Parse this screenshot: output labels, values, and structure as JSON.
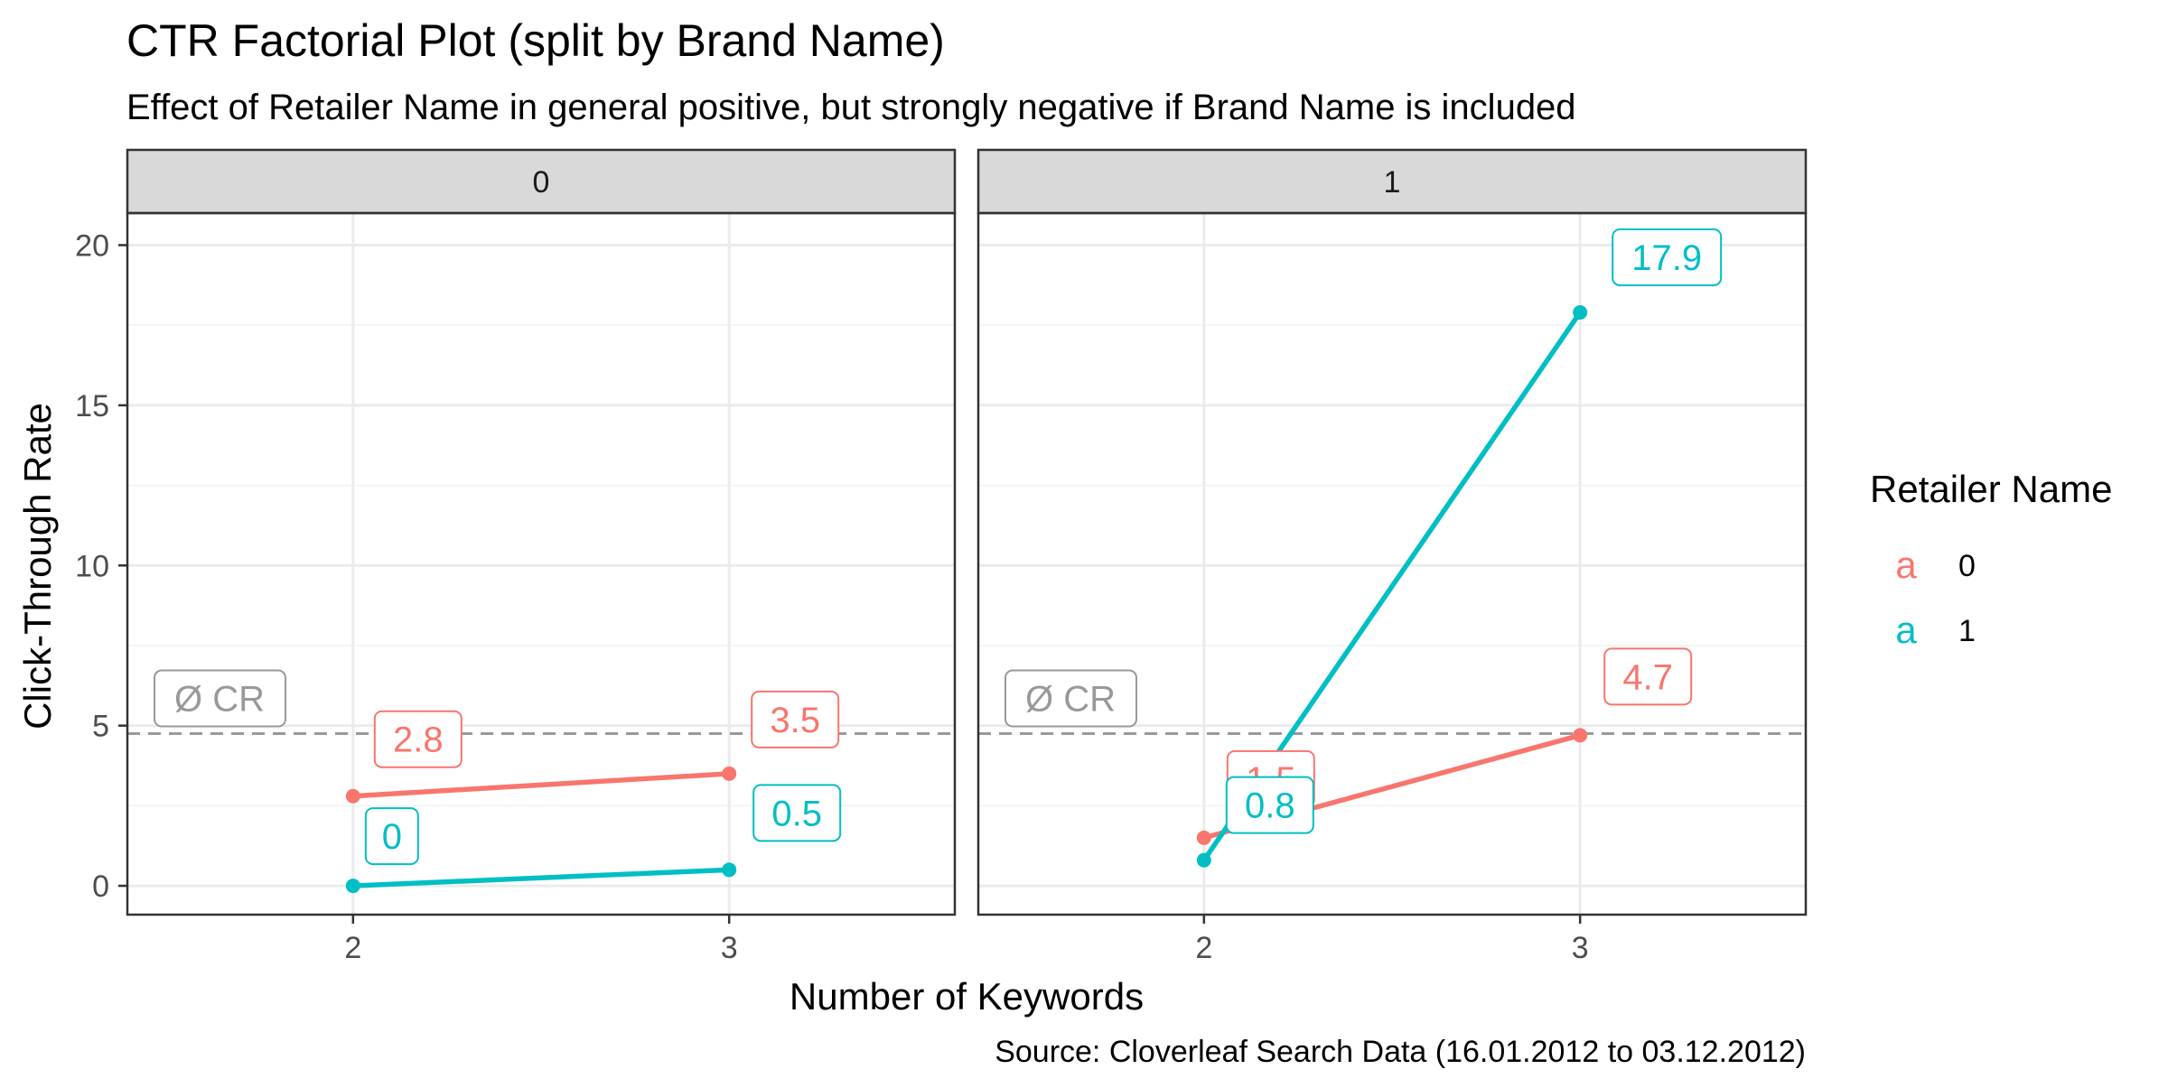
{
  "chart_data": {
    "type": "line",
    "title": "CTR Factorial Plot (split by Brand Name)",
    "subtitle": "Effect of Retailer Name in general positive, but strongly negative if Brand Name is included",
    "xlabel": "Number of Keywords",
    "ylabel": "Click-Through Rate",
    "caption": "Source: Cloverleaf Search Data (16.01.2012 to 03.12.2012)",
    "x": [
      2,
      3
    ],
    "x_ticks": [
      "2",
      "3"
    ],
    "y_ticks": [
      0,
      5,
      10,
      15,
      20
    ],
    "ylim": [
      -0.9,
      21
    ],
    "grid": true,
    "legend": {
      "title": "Retailer Name",
      "position": "right",
      "entries": [
        {
          "label": "0",
          "color": "#F8766D"
        },
        {
          "label": "1",
          "color": "#00BFC4"
        }
      ]
    },
    "reference_line": {
      "value": 4.75,
      "label": "Ø CR",
      "color": "#999999"
    },
    "facets": [
      {
        "label": "0",
        "series": [
          {
            "name": "0",
            "color": "#F8766D",
            "values": [
              2.8,
              3.5
            ],
            "labels": [
              "2.8",
              "3.5"
            ]
          },
          {
            "name": "1",
            "color": "#00BFC4",
            "values": [
              0.0,
              0.5
            ],
            "labels": [
              "0",
              "0.5"
            ]
          }
        ]
      },
      {
        "label": "1",
        "series": [
          {
            "name": "0",
            "color": "#F8766D",
            "values": [
              1.5,
              4.7
            ],
            "labels": [
              "1.5",
              "4.7"
            ]
          },
          {
            "name": "1",
            "color": "#00BFC4",
            "values": [
              0.8,
              17.9
            ],
            "labels": [
              "0.8",
              "17.9"
            ]
          }
        ]
      }
    ]
  }
}
